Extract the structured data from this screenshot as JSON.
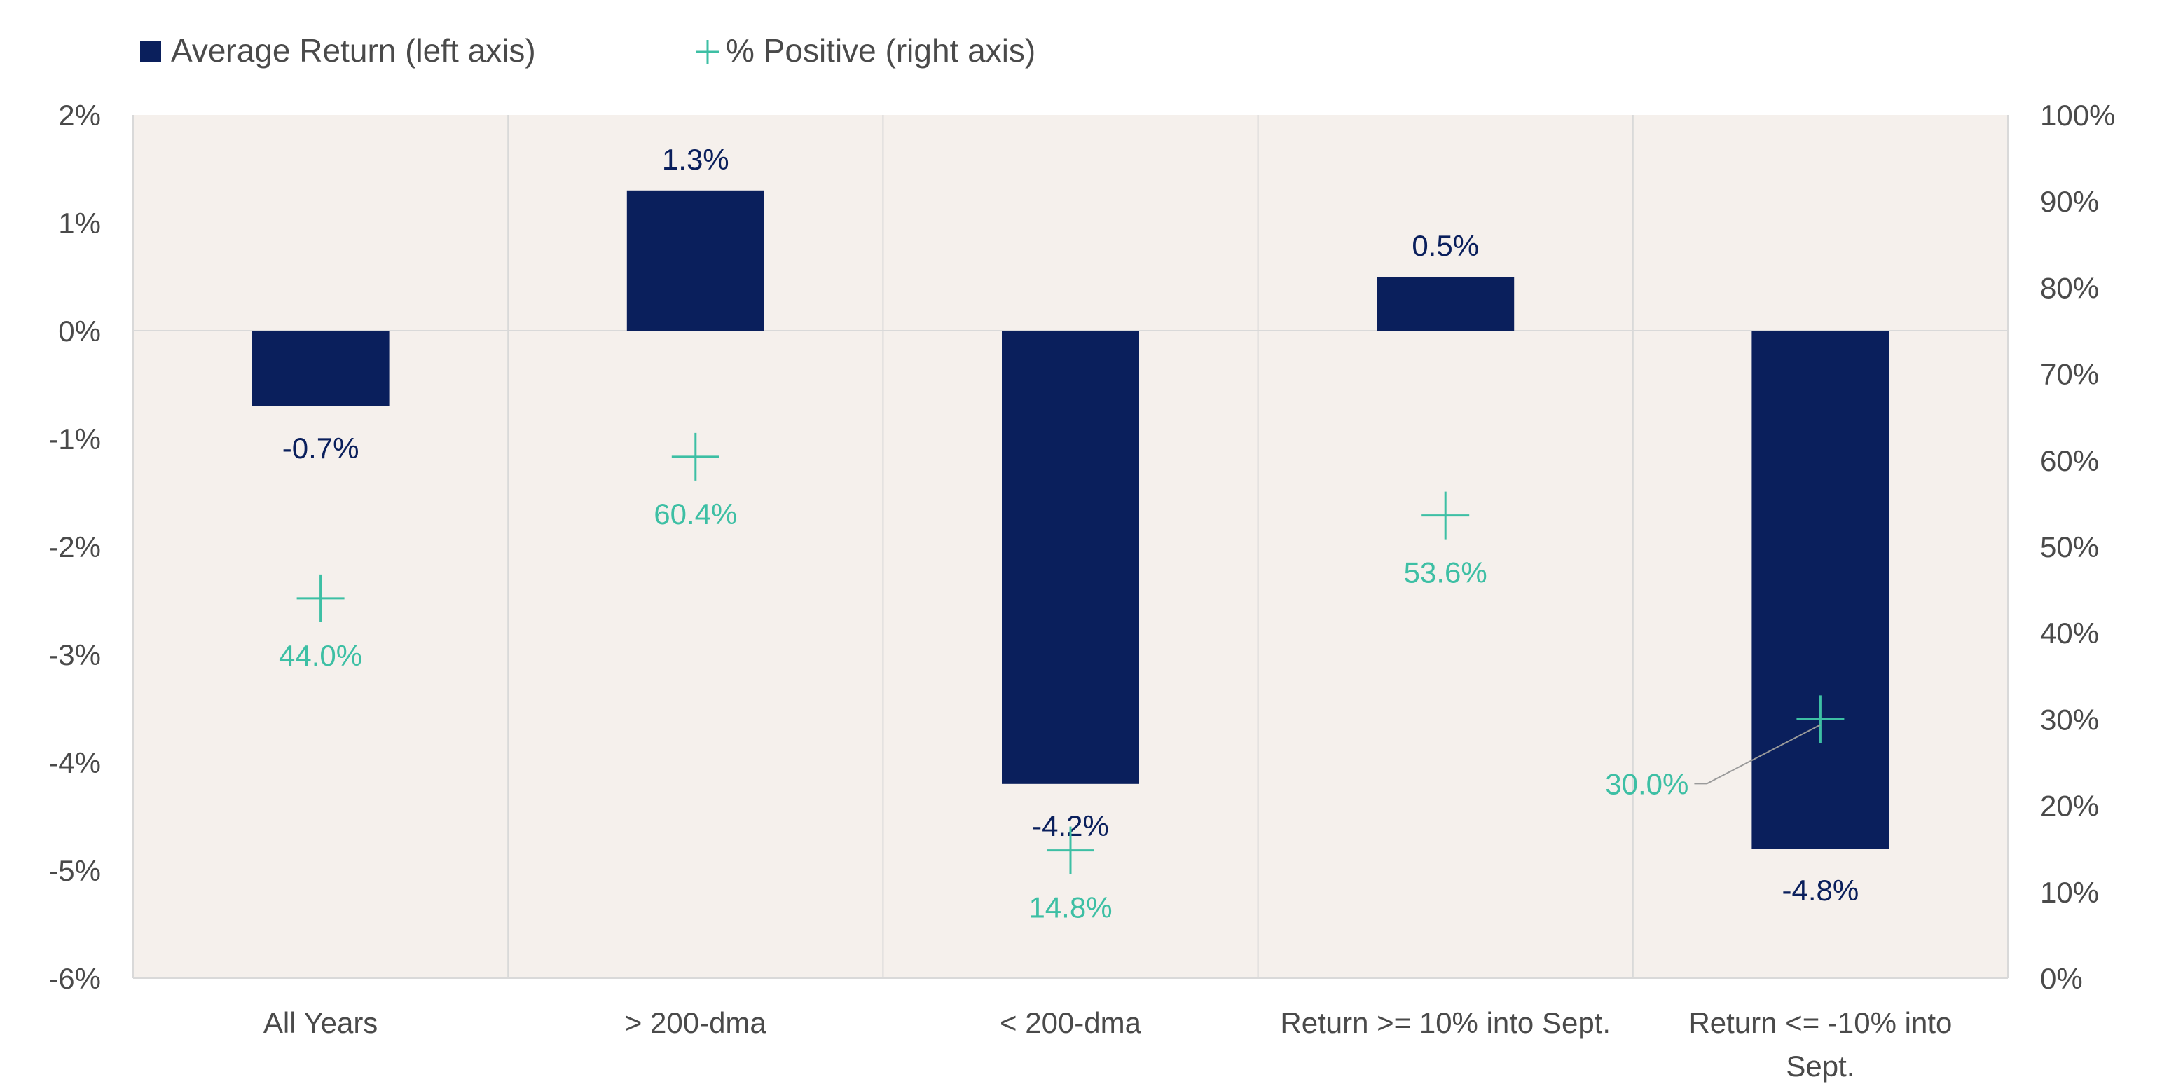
{
  "chart_data": {
    "type": "bar",
    "categories": [
      "All Years",
      "> 200-dma",
      "< 200-dma",
      "Return >= 10% into Sept.",
      "Return <= -10% into Sept."
    ],
    "category_label_lines": [
      [
        "All Years"
      ],
      [
        "> 200-dma"
      ],
      [
        "< 200-dma"
      ],
      [
        "Return >= 10% into Sept."
      ],
      [
        "Return <= -10% into",
        "Sept."
      ]
    ],
    "series": [
      {
        "name": "Average Return (left axis)",
        "axis": "left",
        "type": "bar",
        "values": [
          -0.7,
          1.3,
          -4.2,
          0.5,
          -4.8
        ],
        "labels": [
          "-0.7%",
          "1.3%",
          "-4.2%",
          "0.5%",
          "-4.8%"
        ],
        "color": "#0a1f5c"
      },
      {
        "name": "% Positive (right axis)",
        "axis": "right",
        "type": "scatter",
        "marker": "plus",
        "values": [
          44.0,
          60.4,
          14.8,
          53.6,
          30.0
        ],
        "labels": [
          "44.0%",
          "60.4%",
          "14.8%",
          "53.6%",
          "30.0%"
        ],
        "color": "#3dbfa4"
      }
    ],
    "y_left": {
      "ylim": [
        -6,
        2
      ],
      "ticks": [
        2,
        1,
        0,
        -1,
        -2,
        -3,
        -4,
        -5,
        -6
      ],
      "tick_labels": [
        "2%",
        "1%",
        "0%",
        "-1%",
        "-2%",
        "-3%",
        "-4%",
        "-5%",
        "-6%"
      ]
    },
    "y_right": {
      "ylim": [
        0,
        100
      ],
      "ticks": [
        100,
        90,
        80,
        70,
        60,
        50,
        40,
        30,
        20,
        10,
        0
      ],
      "tick_labels": [
        "100%",
        "90%",
        "80%",
        "70%",
        "60%",
        "50%",
        "40%",
        "30%",
        "20%",
        "10%",
        "0%"
      ]
    },
    "legend": {
      "position": "top-left",
      "entries": [
        "Average Return (left axis)",
        "% Positive (right axis)"
      ]
    },
    "grid": true,
    "plot_background": "#f5f0ec",
    "grid_color": "#d9d9d9",
    "text_color": "#4a4a4a",
    "bar_label_color": "#0a1f5c",
    "marker_label_color": "#3dbfa4"
  }
}
